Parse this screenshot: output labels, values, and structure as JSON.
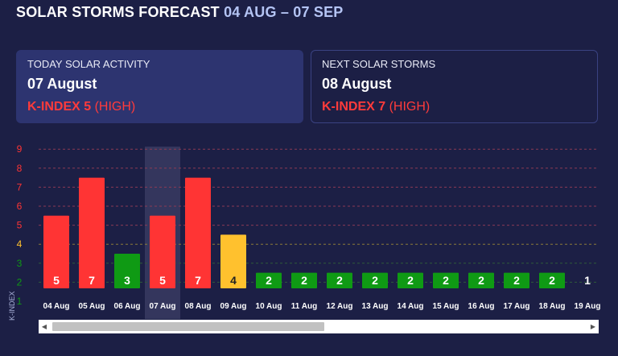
{
  "header": {
    "title": "SOLAR STORMS FORECAST",
    "range": "04 AUG – 07 SEP"
  },
  "today_card": {
    "label": "TODAY SOLAR ACTIVITY",
    "date": "07 August",
    "kindex_prefix": "K-INDEX 5",
    "kindex_level": "(HIGH)"
  },
  "next_card": {
    "label": "NEXT SOLAR STORMS",
    "date": "08 August",
    "kindex_prefix": "K-INDEX 7",
    "kindex_level": "(HIGH)"
  },
  "axis": {
    "title": "K-INDEX"
  },
  "scrollbar": {
    "left_arrow": "◀",
    "right_arrow": "▶",
    "position": 0,
    "visible_fraction": 0.51
  },
  "colors": {
    "high": "#ff3434",
    "moderate": "#ffc12e",
    "low": "#0f9a14",
    "grid_red": "#8a3a55",
    "grid_yellow": "#8a7a3a",
    "grid_green": "#2e5a3a",
    "highlight": "#3c3f66"
  },
  "chart_data": {
    "type": "bar",
    "ylabel": "K-INDEX",
    "ylim": [
      1,
      9
    ],
    "yticks": [
      "9",
      "8",
      "7",
      "6",
      "5",
      "4",
      "3",
      "2",
      "1"
    ],
    "categories": [
      "04 Aug",
      "05 Aug",
      "06 Aug",
      "07 Aug",
      "08 Aug",
      "09 Aug",
      "10 Aug",
      "11 Aug",
      "12 Aug",
      "13 Aug",
      "14 Aug",
      "15 Aug",
      "16 Aug",
      "17 Aug",
      "18 Aug",
      "19 Aug"
    ],
    "values": [
      5,
      7,
      3,
      5,
      7,
      4,
      2,
      2,
      2,
      2,
      2,
      2,
      2,
      2,
      2,
      1
    ],
    "highlighted": "07 Aug"
  }
}
